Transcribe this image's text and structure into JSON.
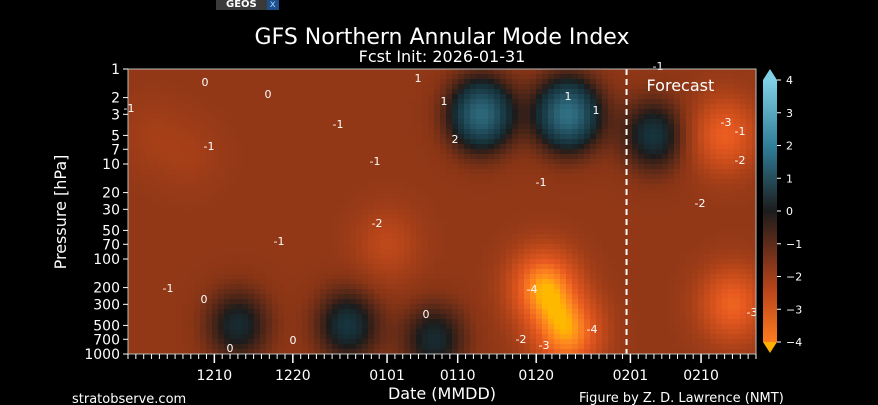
{
  "tabs": {
    "active": "GEOS",
    "close": "x"
  },
  "credits": {
    "left": "stratobserve.com",
    "right": "Figure by Z. D. Lawrence (NMT)"
  },
  "chart_data": {
    "type": "heatmap",
    "title": "GFS Northern Annular Mode Index",
    "subtitle": "Fcst Init: 2026-01-31",
    "xlabel": "Date (MMDD)",
    "ylabel": "Pressure [hPa]",
    "y_scale": "log",
    "ylim": [
      1000,
      1
    ],
    "y_ticks": [
      1,
      2,
      3,
      5,
      7,
      10,
      20,
      30,
      50,
      70,
      100,
      200,
      300,
      500,
      700,
      1000
    ],
    "x_range": [
      "2025-11-29",
      "2026-02-17"
    ],
    "x_ticks": [
      {
        "date": "2025-12-10",
        "label": "1210"
      },
      {
        "date": "2025-12-20",
        "label": "1220"
      },
      {
        "date": "2026-01-01",
        "label": "0101"
      },
      {
        "date": "2026-01-10",
        "label": "0110"
      },
      {
        "date": "2026-01-20",
        "label": "0120"
      },
      {
        "date": "2026-02-01",
        "label": "0201"
      },
      {
        "date": "2026-02-10",
        "label": "0210"
      }
    ],
    "forecast_start": "2026-01-31",
    "forecast_label": "Forecast",
    "colorbar": {
      "range": [
        -4,
        4
      ],
      "ticks": [
        "4",
        "3",
        "2",
        "1",
        "0",
        "−1",
        "−2",
        "−3",
        "−4"
      ],
      "colors": {
        "pos": "#3a9fbf",
        "neutral": "#1c1c1c",
        "neg": "#e8541e",
        "extreme_neg": "#ffb000"
      }
    },
    "contour_labels": [
      "0",
      "0",
      "0",
      "0",
      "0",
      "0",
      "1",
      "1",
      "1",
      "1",
      "-1",
      "-1",
      "-1",
      "-1",
      "-1",
      "-1",
      "-1",
      "-1",
      "-1",
      "-2",
      "-2",
      "-2",
      "-2",
      "-3",
      "-3",
      "-3",
      "-4",
      "-4",
      "2"
    ],
    "features": [
      {
        "center": "2026-01-13",
        "p": 3,
        "value": 1.8
      },
      {
        "center": "2026-01-24",
        "p": 3,
        "value": 2.0
      },
      {
        "center": "2026-02-04",
        "p": 5,
        "value": 0.5
      },
      {
        "center": "2026-01-21",
        "p": 200,
        "value": -4.2
      },
      {
        "center": "2026-01-24",
        "p": 600,
        "value": -4.0
      },
      {
        "center": "2026-02-14",
        "p": 300,
        "value": -3.2
      },
      {
        "center": "2026-02-13",
        "p": 5,
        "value": -3.1
      },
      {
        "center": "2026-01-01",
        "p": 70,
        "value": -2.0
      },
      {
        "center": "2025-12-07",
        "p": 8,
        "value": -1.5
      },
      {
        "center": "2025-12-02",
        "p": 5,
        "value": -1.5
      },
      {
        "center": "2025-12-13",
        "p": 500,
        "value": 0.3
      },
      {
        "center": "2025-12-27",
        "p": 500,
        "value": 0.5
      },
      {
        "center": "2026-01-07",
        "p": 700,
        "value": 0.3
      }
    ]
  }
}
